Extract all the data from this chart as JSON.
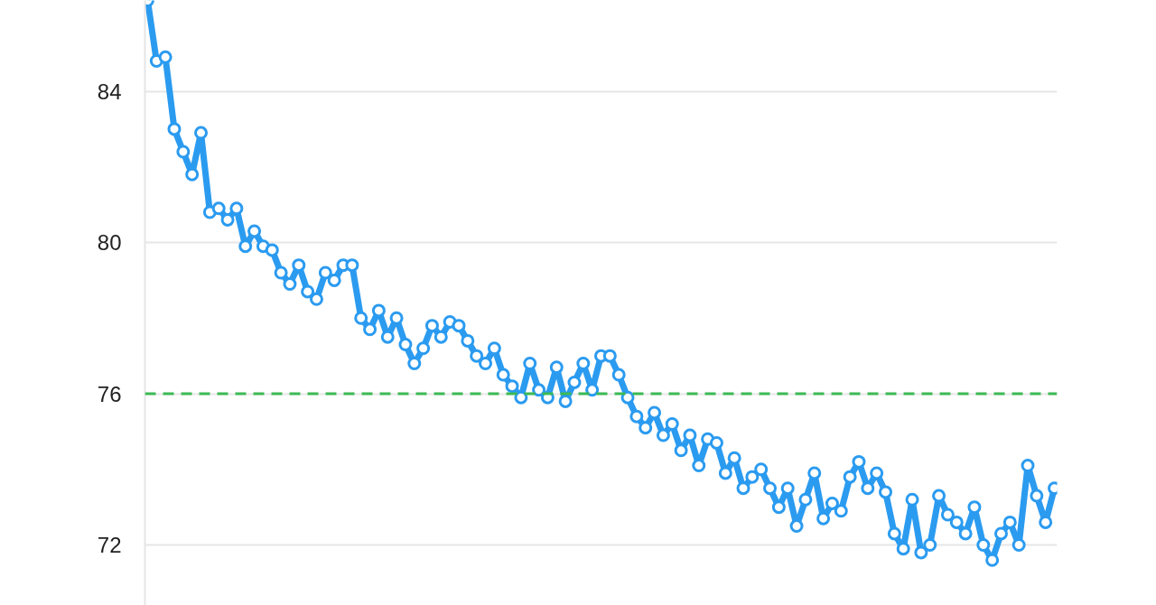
{
  "chart_data": {
    "type": "line",
    "categories": [
      null,
      null,
      null,
      null,
      null,
      null,
      null,
      null,
      null,
      null,
      null,
      null,
      null,
      null,
      null,
      null,
      null,
      null,
      null,
      null,
      null,
      null,
      null,
      null,
      null,
      null,
      null,
      null,
      null,
      null,
      null,
      null,
      null,
      null,
      null,
      null,
      null,
      null,
      null,
      null,
      null,
      null,
      null,
      null,
      null,
      null,
      null,
      null,
      null,
      null,
      null,
      null,
      null,
      null,
      null,
      null,
      null,
      null,
      null,
      null,
      null,
      null,
      null,
      null,
      null,
      null,
      null,
      null,
      null,
      null,
      null,
      null,
      null,
      null,
      null,
      null,
      null,
      null,
      null,
      null,
      null,
      null,
      null,
      null,
      null,
      null,
      null,
      null,
      null,
      null,
      null,
      null,
      null,
      null,
      null,
      null,
      null,
      null,
      null,
      null,
      null,
      null,
      null
    ],
    "series": [
      {
        "color": "#2b9bf0",
        "values": [
          86.4,
          84.8,
          84.9,
          83.0,
          82.4,
          81.8,
          82.9,
          80.8,
          80.9,
          80.6,
          80.9,
          79.9,
          80.3,
          79.9,
          79.8,
          79.2,
          78.9,
          79.4,
          78.7,
          78.5,
          79.2,
          79.0,
          79.4,
          79.4,
          78.0,
          77.7,
          78.2,
          77.5,
          78.0,
          77.3,
          76.8,
          77.2,
          77.8,
          77.5,
          77.9,
          77.8,
          77.4,
          77.0,
          76.8,
          77.2,
          76.5,
          76.2,
          75.9,
          76.8,
          76.1,
          75.9,
          76.7,
          75.8,
          76.3,
          76.8,
          76.1,
          77.0,
          77.0,
          76.5,
          75.9,
          75.4,
          75.1,
          75.5,
          74.9,
          75.2,
          74.5,
          74.9,
          74.1,
          74.8,
          74.7,
          73.9,
          74.3,
          73.5,
          73.8,
          74.0,
          73.5,
          73.0,
          73.5,
          72.5,
          73.2,
          73.9,
          72.7,
          73.1,
          72.9,
          73.8,
          74.2,
          73.5,
          73.9,
          73.4,
          72.3,
          71.9,
          73.2,
          71.8,
          72.0,
          73.3,
          72.8,
          72.6,
          72.3,
          73.0,
          72.0,
          71.6,
          72.3,
          72.6,
          72.0,
          74.1,
          73.3,
          72.6,
          73.5
        ]
      }
    ],
    "ylim": [
      70.4,
      86.4
    ],
    "yticks": [
      72,
      76,
      80,
      84
    ],
    "grid": "y",
    "marker": "circle",
    "line_style": "solid",
    "tick_labels": "y",
    "ref_lines": [
      {
        "axis": "y",
        "value": 76,
        "color": "#3cba54",
        "line_style": "dashed"
      }
    ]
  }
}
